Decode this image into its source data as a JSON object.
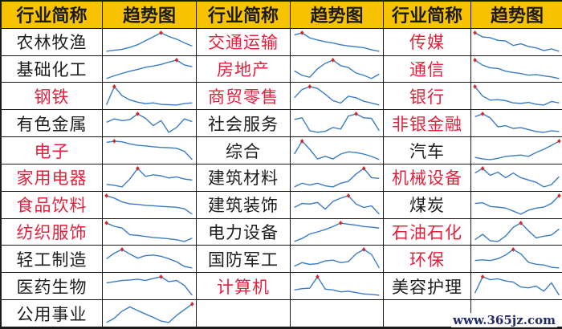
{
  "headers": [
    "行业简称",
    "趋势图",
    "行业简称",
    "趋势图",
    "行业简称",
    "趋势图"
  ],
  "colors": {
    "header_bg": "#f7c200",
    "red_text": "#e4213d",
    "black_text": "#1d1d1d",
    "line": "#3a7cc4",
    "peak": "#d12a2a"
  },
  "columns": [
    [
      {
        "name": "农林牧渔",
        "red": false,
        "trend": [
          20,
          24,
          27,
          35,
          45,
          60,
          75,
          90,
          76,
          66,
          52,
          40
        ]
      },
      {
        "name": "基础化工",
        "red": false,
        "trend": [
          30,
          40,
          48,
          56,
          62,
          70,
          74,
          80,
          88,
          95,
          78,
          72
        ]
      },
      {
        "name": "钢铁",
        "red": true,
        "trend": [
          45,
          95,
          70,
          58,
          52,
          48,
          50,
          46,
          45,
          44,
          48,
          50
        ]
      },
      {
        "name": "有色金属",
        "red": false,
        "trend": [
          70,
          80,
          75,
          78,
          95,
          82,
          60,
          75,
          40,
          55,
          80,
          72
        ]
      },
      {
        "name": "电子",
        "red": true,
        "trend": [
          90,
          94,
          92,
          85,
          80,
          78,
          75,
          73,
          72,
          70,
          60,
          32
        ]
      },
      {
        "name": "家用电器",
        "red": true,
        "trend": [
          60,
          58,
          55,
          70,
          90,
          75,
          78,
          76,
          72,
          74,
          70,
          68
        ]
      },
      {
        "name": "食品饮料",
        "red": true,
        "trend": [
          95,
          85,
          70,
          62,
          60,
          56,
          54,
          52,
          50,
          48,
          42,
          20
        ]
      },
      {
        "name": "纺织服饰",
        "red": true,
        "trend": [
          95,
          85,
          80,
          60,
          58,
          55,
          52,
          50,
          48,
          45,
          40,
          50
        ]
      },
      {
        "name": "轻工制造",
        "red": false,
        "trend": [
          60,
          78,
          90,
          75,
          62,
          70,
          72,
          68,
          60,
          50,
          35,
          30
        ]
      },
      {
        "name": "医药生物",
        "red": false,
        "trend": [
          70,
          75,
          80,
          82,
          85,
          80,
          88,
          95,
          75,
          80,
          60,
          20
        ]
      },
      {
        "name": "公用事业",
        "red": false,
        "trend": [
          30,
          45,
          70,
          85,
          72,
          60,
          48,
          35,
          30,
          55,
          75,
          95
        ]
      }
    ],
    [
      {
        "name": "交通运输",
        "red": true,
        "trend": [
          85,
          92,
          75,
          68,
          62,
          58,
          52,
          48,
          45,
          42,
          35,
          30
        ]
      },
      {
        "name": "房地产",
        "red": true,
        "trend": [
          62,
          48,
          42,
          68,
          85,
          95,
          78,
          72,
          55,
          48,
          38,
          52
        ]
      },
      {
        "name": "商贸零售",
        "red": true,
        "trend": [
          50,
          78,
          88,
          82,
          62,
          40,
          32,
          55,
          50,
          38,
          32,
          25
        ]
      },
      {
        "name": "社会服务",
        "red": false,
        "trend": [
          75,
          80,
          40,
          35,
          38,
          50,
          45,
          85,
          92,
          80,
          78,
          40
        ]
      },
      {
        "name": "综合",
        "red": false,
        "trend": [
          55,
          95,
          70,
          40,
          48,
          40,
          55,
          62,
          60,
          55,
          48,
          38
        ]
      },
      {
        "name": "建筑材料",
        "red": false,
        "trend": [
          45,
          55,
          50,
          55,
          48,
          45,
          55,
          60,
          80,
          95,
          70,
          68
        ]
      },
      {
        "name": "建筑装饰",
        "red": false,
        "trend": [
          60,
          72,
          70,
          75,
          55,
          78,
          88,
          95,
          70,
          60,
          65,
          40
        ]
      },
      {
        "name": "电力设备",
        "red": false,
        "trend": [
          30,
          40,
          55,
          62,
          70,
          80,
          92,
          88,
          85,
          80,
          78,
          75
        ]
      },
      {
        "name": "国防军工",
        "red": false,
        "trend": [
          45,
          55,
          50,
          52,
          60,
          62,
          55,
          58,
          80,
          92,
          78,
          40
        ]
      },
      {
        "name": "计算机",
        "red": true,
        "trend": [
          45,
          50,
          52,
          95,
          48,
          45,
          38,
          40,
          35,
          30,
          28,
          25
        ]
      }
    ],
    [
      {
        "name": "传媒",
        "red": true,
        "trend": [
          92,
          80,
          78,
          70,
          68,
          55,
          60,
          52,
          48,
          40,
          45,
          38
        ]
      },
      {
        "name": "通信",
        "red": true,
        "trend": [
          95,
          80,
          72,
          70,
          62,
          58,
          55,
          50,
          52,
          48,
          45,
          40
        ]
      },
      {
        "name": "银行",
        "red": true,
        "trend": [
          90,
          55,
          40,
          42,
          38,
          30,
          28,
          32,
          25,
          22,
          35,
          30
        ]
      },
      {
        "name": "非银金融",
        "red": true,
        "trend": [
          88,
          95,
          85,
          62,
          65,
          58,
          60,
          55,
          50,
          48,
          52,
          50
        ]
      },
      {
        "name": "汽车",
        "red": false,
        "trend": [
          45,
          40,
          38,
          42,
          48,
          50,
          52,
          48,
          60,
          70,
          82,
          95
        ]
      },
      {
        "name": "机械设备",
        "red": true,
        "trend": [
          70,
          80,
          65,
          72,
          60,
          70,
          60,
          55,
          50,
          40,
          45,
          62
        ]
      },
      {
        "name": "煤炭",
        "red": false,
        "trend": [
          70,
          72,
          60,
          58,
          55,
          45,
          35,
          48,
          55,
          58,
          70,
          95
        ]
      },
      {
        "name": "石油石化",
        "red": true,
        "trend": [
          45,
          60,
          42,
          40,
          55,
          80,
          92,
          70,
          50,
          55,
          58,
          75
        ]
      },
      {
        "name": "环保",
        "red": true,
        "trend": [
          60,
          62,
          60,
          65,
          75,
          90,
          78,
          55,
          50,
          48,
          42,
          40
        ]
      },
      {
        "name": "美容护理",
        "red": false,
        "trend": [
          45,
          85,
          78,
          80,
          75,
          72,
          60,
          58,
          62,
          50,
          70,
          40
        ]
      }
    ]
  ],
  "watermark": "www.365jz.com"
}
